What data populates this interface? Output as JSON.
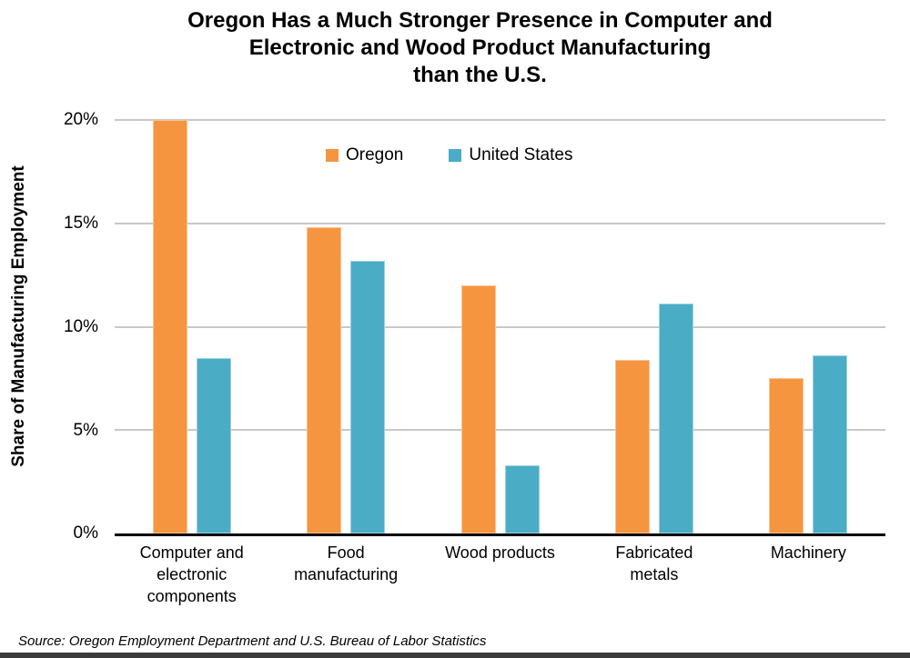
{
  "title": {
    "line1": "Oregon Has a Much Stronger Presence in Computer and",
    "line2": "Electronic and Wood Product Manufacturing",
    "line3": "than the U.S."
  },
  "y_axis": {
    "label": "Share of Manufacturing Employment",
    "ticks": [
      "20%",
      "15%",
      "10%",
      "5%",
      "0%"
    ]
  },
  "source": "Source: Oregon Employment Department and U.S. Bureau of Labor Statistics",
  "colors": {
    "oregon": "#F6953F",
    "oregon_border": "#FAC397",
    "us": "#4BACC6",
    "us_border": "#9ED1DF",
    "gridline": "#C8C8C8",
    "axis": "#000000"
  },
  "chart_data": {
    "type": "bar",
    "title": "Oregon Has a Much Stronger Presence in Computer and Electronic and Wood Product Manufacturing than the U.S.",
    "categories": [
      "Computer and\nelectronic\ncomponents",
      "Food\nmanufacturing",
      "Wood products",
      "Fabricated\nmetals",
      "Machinery"
    ],
    "series": [
      {
        "name": "Oregon",
        "color": "#F6953F",
        "values": [
          20.0,
          14.8,
          12.0,
          8.4,
          7.5
        ]
      },
      {
        "name": "United States",
        "color": "#4BACC6",
        "values": [
          8.5,
          13.2,
          3.3,
          11.1,
          8.6
        ]
      }
    ],
    "xlabel": "",
    "ylabel": "Share of Manufacturing Employment",
    "ylim": [
      0,
      20
    ],
    "yticks": [
      0,
      5,
      10,
      15,
      20
    ],
    "ytick_format": "percent",
    "grid": true,
    "legend_position": "top-center"
  }
}
